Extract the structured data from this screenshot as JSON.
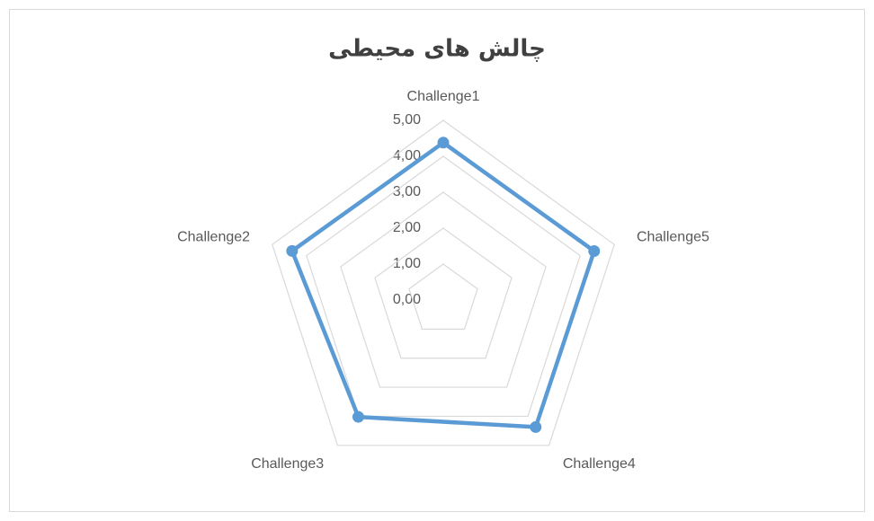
{
  "chart_data": {
    "type": "radar",
    "title": "چالش های محیطی",
    "categories": [
      "Challenge1",
      "Challenge2",
      "Challenge3",
      "Challenge4",
      "Challenge5"
    ],
    "series": [
      {
        "name": "چالش های محیطی",
        "color": "#5b9bd5",
        "values": [
          4.38,
          4.42,
          4.02,
          4.37,
          4.41
        ]
      }
    ],
    "ylim": [
      0,
      5
    ],
    "yticks": [
      {
        "value": 0,
        "label": "0,00"
      },
      {
        "value": 1,
        "label": "1,00"
      },
      {
        "value": 2,
        "label": "2,00"
      },
      {
        "value": 3,
        "label": "3,00"
      },
      {
        "value": 4,
        "label": "4,00"
      },
      {
        "value": 5,
        "label": "5,00"
      }
    ],
    "grid": true,
    "legend": false
  }
}
